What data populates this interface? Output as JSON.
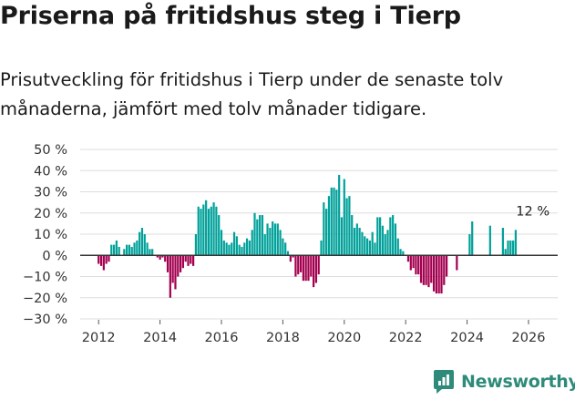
{
  "title": "Priserna på fritidshus steg i Tierp",
  "subtitle": "Prisutveckling för fritidshus i Tierp under de senaste tolv månaderna, jämfört med tolv månader tidigare.",
  "brand": {
    "name": "Newsworthy",
    "color": "#2e8b7a",
    "icon": "newsworthy-logo-icon"
  },
  "colors": {
    "positive": "#00a19a",
    "negative": "#a3004f",
    "zero_line": "#333333",
    "grid": "#dddddd"
  },
  "chart_data": {
    "type": "bar",
    "title": "Priserna på fritidshus steg i Tierp",
    "xlabel": "",
    "ylabel": "",
    "ylim": [
      -30,
      50
    ],
    "y_ticks": [
      50,
      40,
      30,
      20,
      10,
      0,
      -10,
      -20,
      -30
    ],
    "y_tick_labels": [
      "50 %",
      "40 %",
      "30 %",
      "20 %",
      "10 %",
      "0 %",
      "−10 %",
      "−20 %",
      "−30 %"
    ],
    "x_ticks": [
      2012,
      2014,
      2016,
      2018,
      2020,
      2022,
      2024,
      2026
    ],
    "x_tick_labels": [
      "2012",
      "2014",
      "2016",
      "2018",
      "2020",
      "2022",
      "2024",
      "2026"
    ],
    "grid": true,
    "annotation": {
      "text": "12 %",
      "date": 2026.17,
      "value": 12
    },
    "series": [
      {
        "name": "Prisutveckling",
        "start": 2012.0,
        "step": 0.08333,
        "values": [
          -4,
          -5,
          -7,
          -4,
          -3,
          5,
          5,
          7,
          4,
          0,
          3,
          5,
          5,
          4,
          6,
          7,
          11,
          13,
          10,
          6,
          3,
          3,
          0,
          -1,
          -2,
          -1,
          -3,
          -8,
          -20,
          -13,
          -16,
          -10,
          -8,
          -6,
          -3,
          -5,
          -4,
          -5,
          10,
          23,
          22,
          24,
          26,
          22,
          23,
          25,
          23,
          19,
          12,
          7,
          6,
          5,
          6,
          11,
          9,
          5,
          4,
          6,
          8,
          7,
          12,
          20,
          17,
          19,
          19,
          10,
          15,
          13,
          16,
          15,
          15,
          12,
          8,
          6,
          2,
          -3,
          -1,
          -10,
          -9,
          -8,
          -12,
          -12,
          -12,
          -10,
          -15,
          -13,
          -9,
          7,
          25,
          22,
          28,
          32,
          32,
          31,
          38,
          18,
          36,
          27,
          28,
          19,
          13,
          15,
          13,
          11,
          9,
          8,
          7,
          11,
          6,
          18,
          18,
          14,
          10,
          12,
          18,
          19,
          15,
          8,
          3,
          2,
          0,
          -3,
          -7,
          -6,
          -9,
          -9,
          -13,
          -14,
          -14,
          -15,
          -13,
          -17,
          -18,
          -18,
          -18,
          -14,
          -10,
          0,
          0,
          0,
          -7,
          0,
          0,
          0,
          0,
          10,
          16,
          0,
          0,
          0,
          0,
          0,
          0,
          14,
          0,
          0,
          0,
          0,
          13,
          3,
          7,
          7,
          7,
          12
        ]
      }
    ]
  }
}
